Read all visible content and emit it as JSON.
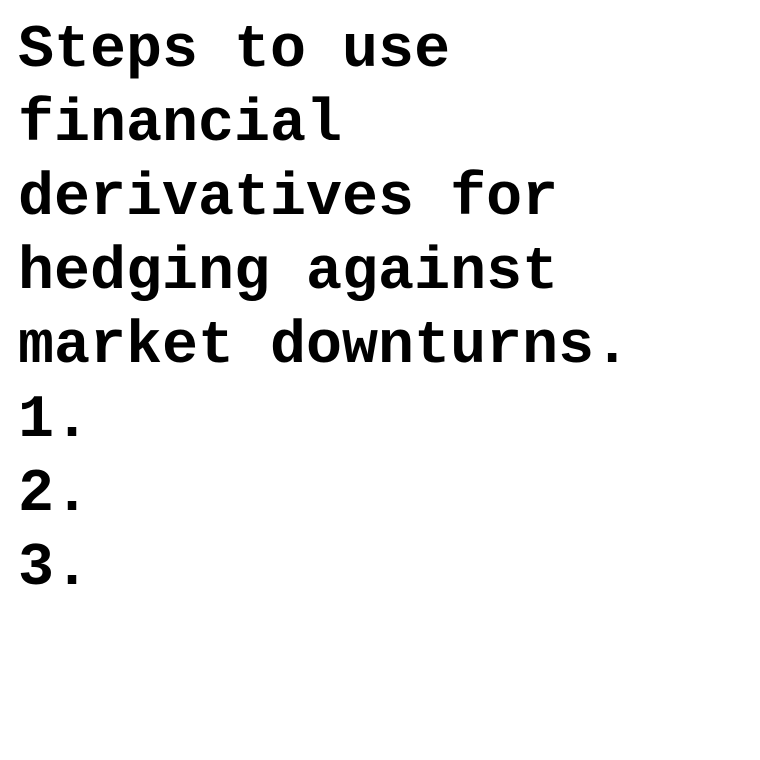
{
  "document": {
    "heading": "Steps to use financial derivatives for hedging against market downturns.",
    "steps": [
      {
        "number": "1.",
        "text": ""
      },
      {
        "number": "2.",
        "text": ""
      },
      {
        "number": "3.",
        "text": ""
      }
    ]
  },
  "colors": {
    "background": "#ffffff",
    "text": "#000000"
  }
}
